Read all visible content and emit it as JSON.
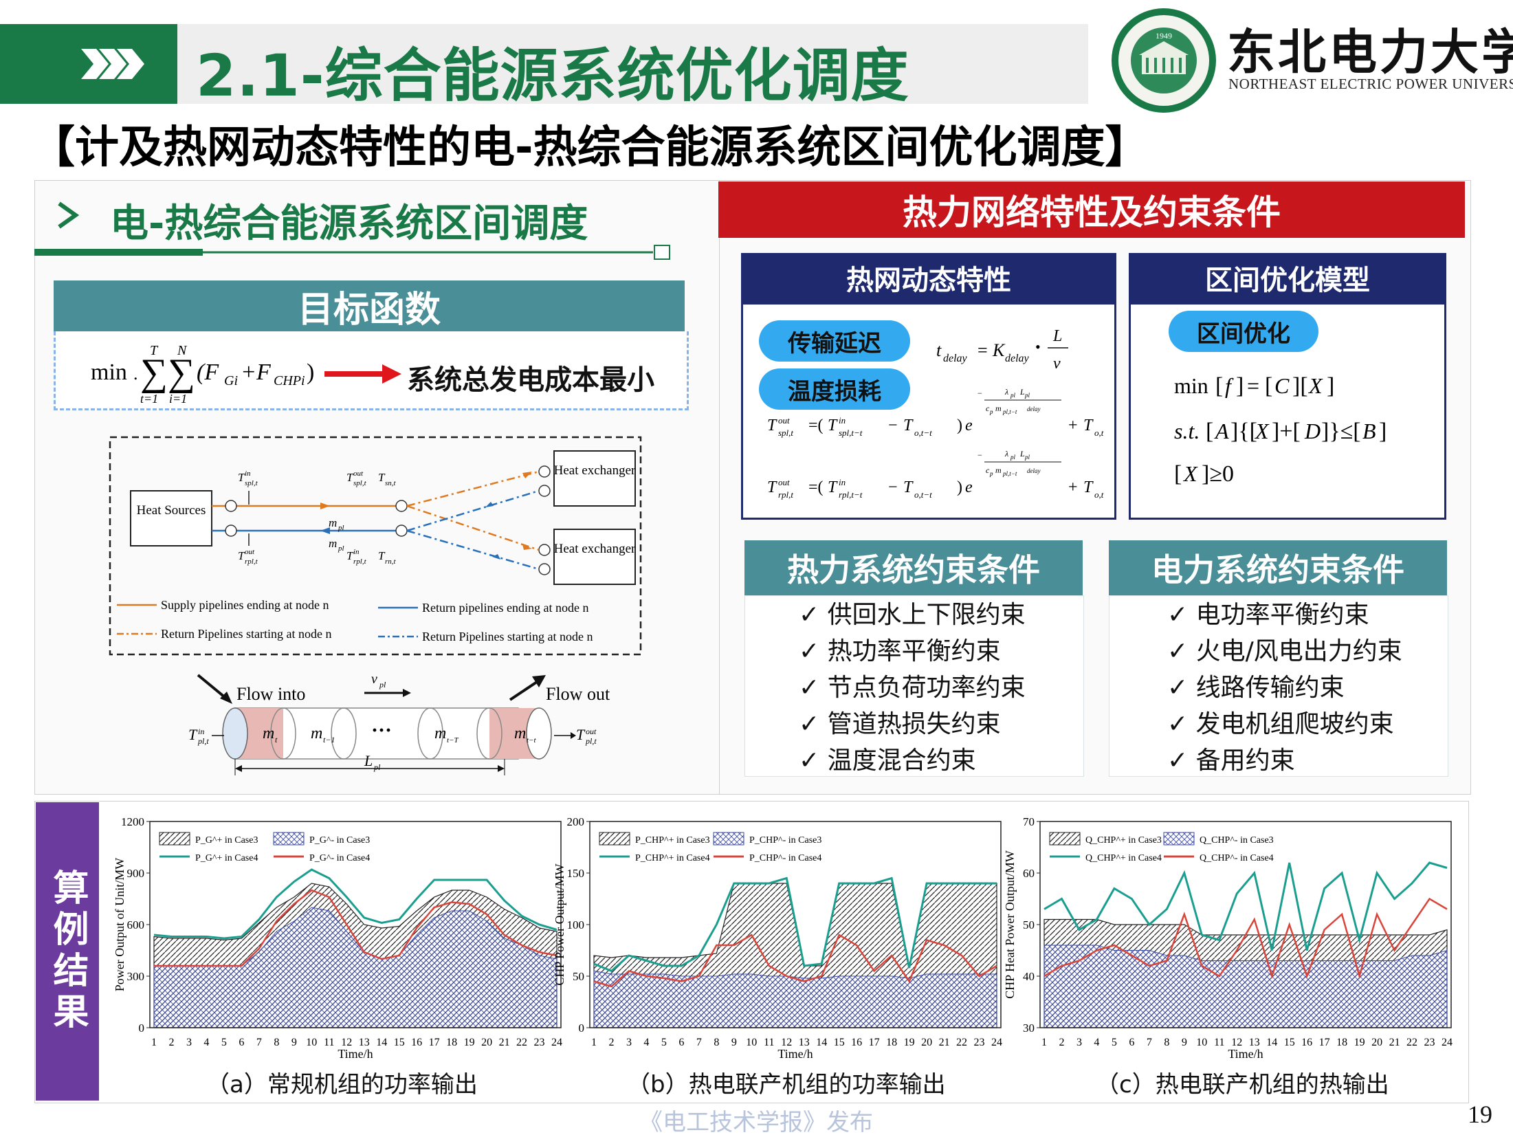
{
  "header": {
    "title": "2.1-综合能源系统优化调度",
    "subtitle": "【计及热网动态特性的电-热综合能源系统区间优化调度】"
  },
  "university": {
    "name_cn": "东北电力大学",
    "name_en": "NORTHEAST ELECTRIC POWER UNIVERSITY",
    "seal_year": "1949",
    "seal_ring": "NORTHEAST ELECTRIC POWER UNIVERSITY"
  },
  "left_panel": {
    "heading": "电-热综合能源系统区间调度",
    "objective_title": "目标函数",
    "objective_text": "系统总发电成本最小",
    "diagram": {
      "heat_sources": "Heat Sources",
      "heat_exchanger": "Heat exchanger",
      "legend": [
        "Supply pipelines ending at node n",
        "Return pipelines ending at node n",
        "Return Pipelines starting at node n",
        "Return Pipelines starting at node n"
      ],
      "flow_into": "Flow into",
      "flow_out": "Flow out"
    }
  },
  "right_panel": {
    "title": "热力网络特性及约束条件",
    "dynamics": {
      "title": "热网动态特性",
      "pill1": "传输延迟",
      "pill2": "温度损耗"
    },
    "interval": {
      "title": "区间优化模型",
      "pill": "区间优化"
    },
    "thermal_constraints": {
      "title": "热力系统约束条件",
      "items": [
        "✓ 供回水上下限约束",
        "✓ 热功率平衡约束",
        "✓ 节点负荷功率约束",
        "✓ 管道热损失约束",
        "✓ 温度混合约束"
      ]
    },
    "power_constraints": {
      "title": "电力系统约束条件",
      "items": [
        "✓ 电功率平衡约束",
        "✓ 火电/风电出力约束",
        "✓ 线路传输约束",
        "✓ 发电机组爬坡约束",
        "✓ 备用约束"
      ]
    }
  },
  "examples": {
    "tab_label": "算例结果",
    "captions": [
      "（a）常规机组的功率输出",
      "（b）热电联产机组的功率输出",
      "（c）热电联产机组的热输出"
    ]
  },
  "chart_data": [
    {
      "type": "area",
      "xlabel": "Time/h",
      "ylabel": "Power Output of Unit/MW",
      "ylim": [
        0,
        1200
      ],
      "yticks": [
        0,
        300,
        600,
        900,
        1200
      ],
      "categories": [
        1,
        2,
        3,
        4,
        5,
        6,
        7,
        8,
        9,
        10,
        11,
        12,
        13,
        14,
        15,
        16,
        17,
        18,
        19,
        20,
        21,
        22,
        23,
        24
      ],
      "legend": [
        "P_G^+ in Case3",
        "P_G^- in Case3",
        "P_G^+ in Case4",
        "P_G^- in Case4"
      ],
      "series": [
        {
          "name": "P_G^+ in Case3",
          "values": [
            530,
            520,
            520,
            520,
            510,
            520,
            610,
            700,
            760,
            840,
            820,
            720,
            600,
            580,
            590,
            680,
            760,
            800,
            800,
            760,
            690,
            640,
            580,
            560
          ]
        },
        {
          "name": "P_G^- in Case3",
          "values": [
            360,
            360,
            360,
            360,
            360,
            360,
            440,
            560,
            620,
            700,
            680,
            560,
            440,
            400,
            420,
            540,
            640,
            680,
            680,
            620,
            520,
            480,
            420,
            400
          ]
        },
        {
          "name": "P_G^+ in Case4",
          "values": [
            540,
            530,
            530,
            530,
            520,
            530,
            630,
            760,
            850,
            920,
            870,
            760,
            640,
            610,
            630,
            750,
            860,
            860,
            860,
            860,
            740,
            650,
            600,
            570
          ]
        },
        {
          "name": "P_G^- in Case4",
          "values": [
            360,
            360,
            360,
            360,
            360,
            360,
            460,
            620,
            720,
            800,
            760,
            600,
            440,
            400,
            420,
            580,
            700,
            730,
            720,
            660,
            540,
            480,
            440,
            420
          ]
        }
      ]
    },
    {
      "type": "area",
      "xlabel": "Time/h",
      "ylabel": "CHP Power Output/MW",
      "ylim": [
        0,
        200
      ],
      "yticks": [
        0,
        50,
        100,
        150,
        200
      ],
      "categories": [
        1,
        2,
        3,
        4,
        5,
        6,
        7,
        8,
        9,
        10,
        11,
        12,
        13,
        14,
        15,
        16,
        17,
        18,
        19,
        20,
        21,
        22,
        23,
        24
      ],
      "legend": [
        "P_CHP^+ in Case3",
        "P_CHP^- in Case3",
        "P_CHP^+ in Case4",
        "P_CHP^- in Case4"
      ],
      "series": [
        {
          "name": "P_CHP^+ in Case3",
          "values": [
            70,
            68,
            70,
            68,
            68,
            68,
            70,
            72,
            140,
            140,
            140,
            140,
            60,
            60,
            140,
            140,
            140,
            140,
            58,
            140,
            140,
            140,
            140,
            140
          ]
        },
        {
          "name": "P_CHP^- in Case3",
          "values": [
            55,
            52,
            52,
            52,
            52,
            50,
            50,
            50,
            52,
            52,
            50,
            50,
            48,
            48,
            50,
            50,
            50,
            50,
            48,
            52,
            52,
            52,
            52,
            52
          ]
        },
        {
          "name": "P_CHP^+ in Case4",
          "values": [
            62,
            55,
            70,
            65,
            60,
            60,
            70,
            100,
            140,
            140,
            140,
            145,
            60,
            62,
            140,
            140,
            140,
            145,
            58,
            140,
            140,
            140,
            140,
            140
          ]
        },
        {
          "name": "P_CHP^- in Case4",
          "values": [
            45,
            40,
            55,
            50,
            48,
            45,
            50,
            80,
            80,
            90,
            60,
            50,
            45,
            50,
            90,
            80,
            55,
            70,
            45,
            85,
            80,
            70,
            50,
            60
          ]
        }
      ]
    },
    {
      "type": "area",
      "xlabel": "Time/h",
      "ylabel": "CHP Heat Power Output/MW",
      "ylim": [
        30,
        70
      ],
      "yticks": [
        30,
        40,
        50,
        60,
        70
      ],
      "categories": [
        1,
        2,
        3,
        4,
        5,
        6,
        7,
        8,
        9,
        10,
        11,
        12,
        13,
        14,
        15,
        16,
        17,
        18,
        19,
        20,
        21,
        22,
        23,
        24
      ],
      "legend": [
        "Q_CHP^+ in Case3",
        "Q_CHP^- in Case3",
        "Q_CHP^+ in Case4",
        "Q_CHP^- in Case4"
      ],
      "series": [
        {
          "name": "Q_CHP^+ in Case3",
          "values": [
            51,
            51,
            51,
            51,
            50,
            50,
            50,
            50,
            50,
            48,
            48,
            48,
            48,
            48,
            48,
            48,
            48,
            48,
            48,
            48,
            48,
            48,
            48,
            49
          ]
        },
        {
          "name": "Q_CHP^- in Case3",
          "values": [
            46,
            46,
            46,
            46,
            45,
            45,
            45,
            44,
            44,
            43,
            43,
            43,
            43,
            43,
            43,
            43,
            43,
            43,
            43,
            43,
            43,
            44,
            44,
            45
          ]
        },
        {
          "name": "Q_CHP^+ in Case4",
          "values": [
            53,
            55,
            49,
            51,
            57,
            55,
            50,
            53,
            60,
            48,
            47,
            56,
            60,
            45,
            62,
            45,
            57,
            60,
            47,
            60,
            55,
            58,
            62,
            61
          ]
        },
        {
          "name": "Q_CHP^- in Case4",
          "values": [
            40,
            42,
            43,
            45,
            46,
            44,
            42,
            43,
            52,
            42,
            40,
            45,
            51,
            40,
            50,
            40,
            49,
            52,
            40,
            52,
            45,
            50,
            55,
            53
          ]
        }
      ]
    }
  ],
  "footer": {
    "publisher": "《电工技术学报》发布",
    "page": "19"
  },
  "colors": {
    "green": "#1a7a47",
    "red": "#c8161d",
    "navy": "#1f2a6e",
    "teal": "#4a8f97",
    "pill": "#33aaf0",
    "purple": "#6c3b9e",
    "case4_upper": "#1a9e8f",
    "case4_lower": "#d9453a",
    "lower_hatch": "#3a4aa5"
  }
}
